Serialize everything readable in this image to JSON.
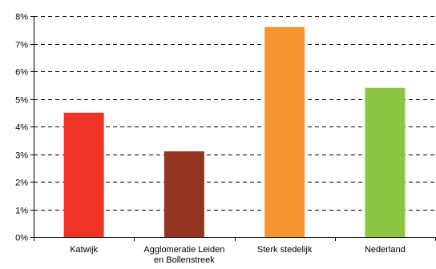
{
  "chart_data": {
    "type": "bar",
    "title": "",
    "xlabel": "",
    "ylabel": "",
    "categories": [
      [
        "Katwijk"
      ],
      [
        "Agglomeratie Leiden",
        "en Bollenstreek"
      ],
      [
        "Sterk stedelijk"
      ],
      [
        "Nederland"
      ]
    ],
    "values": [
      4.5,
      3.1,
      7.6,
      5.4
    ],
    "colors": [
      "#ef3326",
      "#933520",
      "#f6952e",
      "#8cc540"
    ],
    "ylim": [
      0,
      8
    ],
    "yticks": [
      0,
      1,
      2,
      3,
      4,
      5,
      6,
      7,
      8
    ],
    "ytick_labels": [
      "0%",
      "1%",
      "2%",
      "3%",
      "4%",
      "5%",
      "6%",
      "7%",
      "8%"
    ],
    "grid": true,
    "grid_style": "dashed",
    "legend": false
  }
}
